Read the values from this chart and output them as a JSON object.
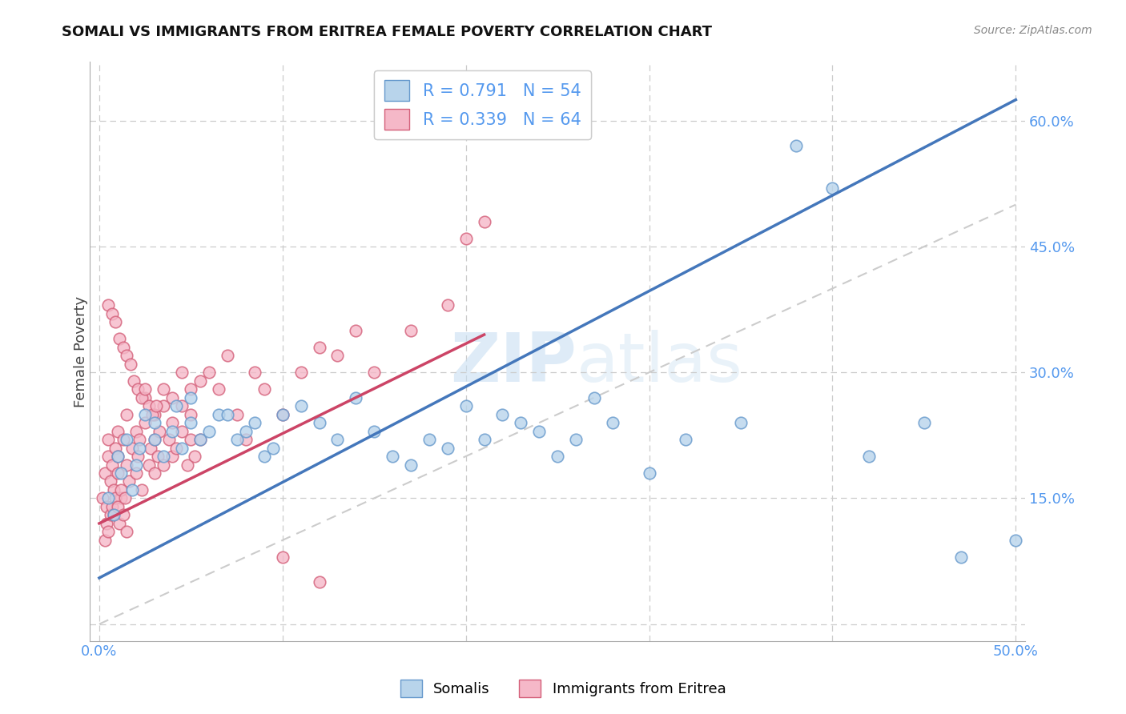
{
  "title": "SOMALI VS IMMIGRANTS FROM ERITREA FEMALE POVERTY CORRELATION CHART",
  "source": "Source: ZipAtlas.com",
  "ylabel": "Female Poverty",
  "xlim": [
    -0.005,
    0.505
  ],
  "ylim": [
    -0.02,
    0.67
  ],
  "xticks": [
    0.0,
    0.1,
    0.2,
    0.3,
    0.4,
    0.5
  ],
  "xticklabels": [
    "0.0%",
    "",
    "",
    "",
    "",
    "50.0%"
  ],
  "yticks": [
    0.0,
    0.15,
    0.3,
    0.45,
    0.6
  ],
  "yticklabels": [
    "",
    "15.0%",
    "30.0%",
    "45.0%",
    "60.0%"
  ],
  "grid_color": "#cccccc",
  "background_color": "#ffffff",
  "watermark_text": "ZIPatlas",
  "legend_R1": "0.791",
  "legend_N1": "54",
  "legend_R2": "0.339",
  "legend_N2": "64",
  "somali_fill": "#b8d4eb",
  "somali_edge": "#6699cc",
  "eritrea_fill": "#f5b8c8",
  "eritrea_edge": "#d4607a",
  "somali_line_color": "#4477bb",
  "eritrea_line_color": "#cc4466",
  "diagonal_color": "#cccccc",
  "tick_label_color": "#5599ee",
  "somali_line_x0": 0.0,
  "somali_line_y0": 0.055,
  "somali_line_x1": 0.5,
  "somali_line_y1": 0.625,
  "eritrea_line_x0": 0.0,
  "eritrea_line_y0": 0.12,
  "eritrea_line_x1": 0.21,
  "eritrea_line_y1": 0.345,
  "somali_x": [
    0.005,
    0.008,
    0.01,
    0.012,
    0.015,
    0.018,
    0.02,
    0.022,
    0.025,
    0.03,
    0.03,
    0.035,
    0.04,
    0.042,
    0.045,
    0.05,
    0.05,
    0.055,
    0.06,
    0.065,
    0.07,
    0.075,
    0.08,
    0.085,
    0.09,
    0.095,
    0.1,
    0.11,
    0.12,
    0.13,
    0.14,
    0.15,
    0.16,
    0.17,
    0.18,
    0.19,
    0.2,
    0.21,
    0.22,
    0.23,
    0.24,
    0.25,
    0.26,
    0.27,
    0.28,
    0.3,
    0.32,
    0.35,
    0.38,
    0.4,
    0.42,
    0.45,
    0.47,
    0.5
  ],
  "somali_y": [
    0.15,
    0.13,
    0.2,
    0.18,
    0.22,
    0.16,
    0.19,
    0.21,
    0.25,
    0.22,
    0.24,
    0.2,
    0.23,
    0.26,
    0.21,
    0.24,
    0.27,
    0.22,
    0.23,
    0.25,
    0.25,
    0.22,
    0.23,
    0.24,
    0.2,
    0.21,
    0.25,
    0.26,
    0.24,
    0.22,
    0.27,
    0.23,
    0.2,
    0.19,
    0.22,
    0.21,
    0.26,
    0.22,
    0.25,
    0.24,
    0.23,
    0.2,
    0.22,
    0.27,
    0.24,
    0.18,
    0.22,
    0.24,
    0.57,
    0.52,
    0.2,
    0.24,
    0.08,
    0.1
  ],
  "eritrea_x": [
    0.002,
    0.003,
    0.004,
    0.005,
    0.005,
    0.006,
    0.007,
    0.008,
    0.009,
    0.01,
    0.01,
    0.01,
    0.012,
    0.013,
    0.015,
    0.015,
    0.016,
    0.018,
    0.02,
    0.02,
    0.021,
    0.022,
    0.023,
    0.025,
    0.025,
    0.027,
    0.028,
    0.03,
    0.03,
    0.03,
    0.032,
    0.033,
    0.035,
    0.035,
    0.038,
    0.04,
    0.04,
    0.042,
    0.045,
    0.045,
    0.048,
    0.05,
    0.05,
    0.052,
    0.055,
    0.06,
    0.065,
    0.07,
    0.075,
    0.08,
    0.085,
    0.09,
    0.1,
    0.11,
    0.12,
    0.13,
    0.14,
    0.15,
    0.17,
    0.19,
    0.2,
    0.21,
    0.1,
    0.12
  ],
  "eritrea_y": [
    0.15,
    0.18,
    0.14,
    0.2,
    0.22,
    0.17,
    0.19,
    0.16,
    0.21,
    0.18,
    0.2,
    0.23,
    0.15,
    0.22,
    0.19,
    0.25,
    0.17,
    0.21,
    0.18,
    0.23,
    0.2,
    0.22,
    0.16,
    0.24,
    0.27,
    0.19,
    0.21,
    0.22,
    0.18,
    0.25,
    0.2,
    0.23,
    0.19,
    0.26,
    0.22,
    0.2,
    0.24,
    0.21,
    0.23,
    0.26,
    0.19,
    0.22,
    0.25,
    0.2,
    0.22,
    0.3,
    0.28,
    0.32,
    0.25,
    0.22,
    0.3,
    0.28,
    0.25,
    0.3,
    0.33,
    0.32,
    0.35,
    0.3,
    0.35,
    0.38,
    0.46,
    0.48,
    0.08,
    0.05
  ],
  "extra_eritrea_x": [
    0.003,
    0.004,
    0.005,
    0.006,
    0.007,
    0.008,
    0.009,
    0.01,
    0.011,
    0.012,
    0.013,
    0.014,
    0.015,
    0.005,
    0.007,
    0.009,
    0.011,
    0.013,
    0.015,
    0.017,
    0.019,
    0.021,
    0.023,
    0.025,
    0.027,
    0.029,
    0.031,
    0.035,
    0.04,
    0.045,
    0.05,
    0.055
  ],
  "extra_eritrea_y": [
    0.1,
    0.12,
    0.11,
    0.13,
    0.14,
    0.13,
    0.15,
    0.14,
    0.12,
    0.16,
    0.13,
    0.15,
    0.11,
    0.38,
    0.37,
    0.36,
    0.34,
    0.33,
    0.32,
    0.31,
    0.29,
    0.28,
    0.27,
    0.28,
    0.26,
    0.25,
    0.26,
    0.28,
    0.27,
    0.3,
    0.28,
    0.29
  ]
}
